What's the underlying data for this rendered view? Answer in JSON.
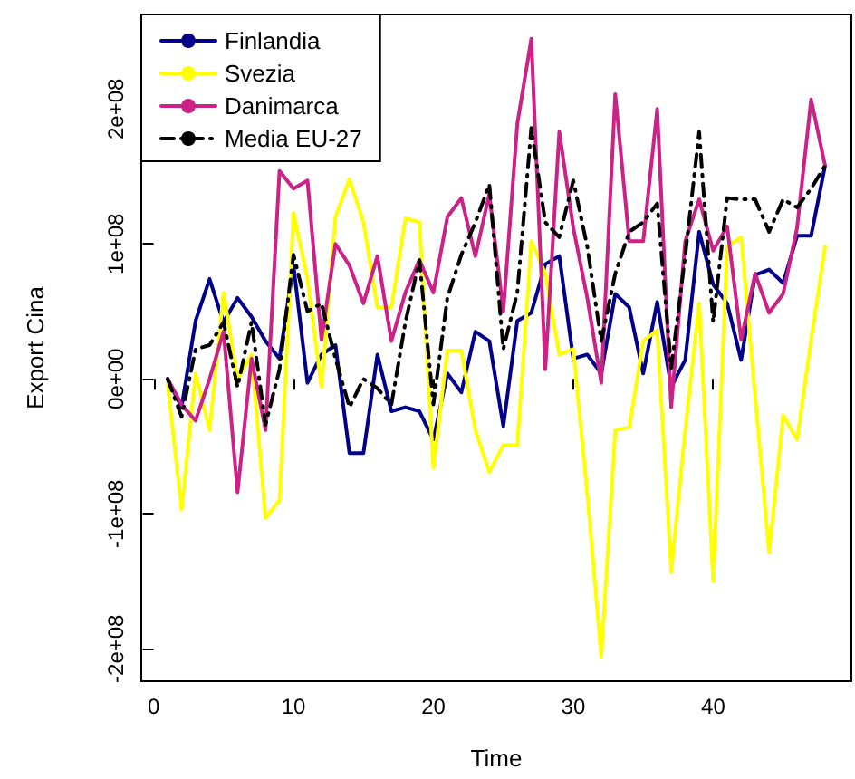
{
  "chart_data": {
    "type": "line",
    "xlabel": "Time",
    "ylabel": "Export Cina",
    "x": [
      1,
      2,
      3,
      4,
      5,
      6,
      7,
      8,
      9,
      10,
      11,
      12,
      13,
      14,
      15,
      16,
      17,
      18,
      19,
      20,
      21,
      22,
      23,
      24,
      25,
      26,
      27,
      28,
      29,
      30,
      31,
      32,
      33,
      34,
      35,
      36,
      37,
      38,
      39,
      40,
      41,
      42,
      43,
      44,
      45,
      46,
      47,
      48
    ],
    "series": [
      {
        "name": "Finlandia",
        "color": "#00008b",
        "line_style": "solid",
        "values": [
          0,
          -21000000,
          43000000,
          74000000,
          42000000,
          60000000,
          46000000,
          28000000,
          15000000,
          84000000,
          -3000000,
          18000000,
          25000000,
          -55000000,
          -55000000,
          18000000,
          -24000000,
          -21000000,
          -24000000,
          -45000000,
          4000000,
          -10000000,
          35000000,
          28000000,
          -35000000,
          43000000,
          49000000,
          85000000,
          91000000,
          15000000,
          18000000,
          4000000,
          63000000,
          53000000,
          4000000,
          57000000,
          -6000000,
          14000000,
          109000000,
          70000000,
          56000000,
          14000000,
          77000000,
          81000000,
          71000000,
          106000000,
          106000000,
          158000000
        ]
      },
      {
        "name": "Svezia",
        "color": "#ffff00",
        "line_style": "solid",
        "values": [
          -3000000,
          -97000000,
          4000000,
          -38000000,
          64000000,
          0,
          18000000,
          -103000000,
          -90000000,
          123000000,
          74000000,
          -6000000,
          120000000,
          148000000,
          116000000,
          53000000,
          53000000,
          119000000,
          116000000,
          -66000000,
          21000000,
          21000000,
          -38000000,
          -69000000,
          -49000000,
          -49000000,
          102000000,
          78000000,
          18000000,
          22000000,
          -85000000,
          -206000000,
          -38000000,
          -36000000,
          28000000,
          36000000,
          -143000000,
          -38000000,
          56000000,
          -150000000,
          98000000,
          105000000,
          -13000000,
          -129000000,
          -27000000,
          -45000000,
          29000000,
          98000000
        ]
      },
      {
        "name": "Danimarca",
        "color": "#cc2288",
        "line_style": "solid",
        "values": [
          0,
          -19000000,
          -31000000,
          0,
          35000000,
          -84000000,
          15000000,
          -38000000,
          154000000,
          141000000,
          147000000,
          29000000,
          100000000,
          84000000,
          56000000,
          91000000,
          28000000,
          64000000,
          88000000,
          64000000,
          120000000,
          134000000,
          91000000,
          137000000,
          50000000,
          189000000,
          252000000,
          7000000,
          183000000,
          112000000,
          60000000,
          -3000000,
          211000000,
          102000000,
          102000000,
          200000000,
          -21000000,
          102000000,
          133000000,
          95000000,
          113000000,
          29000000,
          78000000,
          49000000,
          63000000,
          112000000,
          207000000,
          158000000
        ]
      },
      {
        "name": "Media EU-27",
        "color": "#000000",
        "line_style": "dashed",
        "values": [
          0,
          -28000000,
          22000000,
          25000000,
          42000000,
          -6000000,
          42000000,
          -34000000,
          7000000,
          92000000,
          50000000,
          56000000,
          15000000,
          -21000000,
          0,
          -7000000,
          -19000000,
          42000000,
          88000000,
          -19000000,
          60000000,
          92000000,
          116000000,
          144000000,
          22000000,
          64000000,
          186000000,
          116000000,
          105000000,
          147000000,
          98000000,
          28000000,
          78000000,
          109000000,
          116000000,
          130000000,
          8000000,
          91000000,
          183000000,
          42000000,
          134000000,
          133000000,
          133000000,
          109000000,
          133000000,
          127000000,
          141000000,
          158000000
        ]
      }
    ],
    "xlim": [
      -0.88,
      49.88
    ],
    "xticks": [
      0,
      10,
      20,
      30,
      40
    ],
    "ylim": [
      -224000000,
      270000000
    ],
    "yticks": [
      {
        "value": -200000000,
        "label": "-2e+08"
      },
      {
        "value": -100000000,
        "label": "-1e+08"
      },
      {
        "value": 0,
        "label": "0e+00"
      },
      {
        "value": 100000000,
        "label": "1e+08"
      },
      {
        "value": 200000000,
        "label": "2e+08"
      }
    ],
    "grid": false,
    "legend": "top left",
    "marker": "none"
  }
}
